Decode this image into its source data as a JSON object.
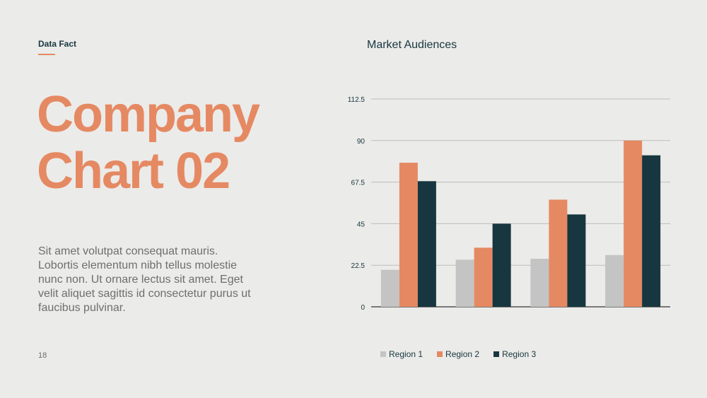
{
  "header": {
    "kicker": "Data Fact"
  },
  "title": {
    "line1": "Company",
    "line2": "Chart 02"
  },
  "body_text": "Sit amet volutpat consequat mauris. Lobortis elementum nibh tellus molestie nunc non. Ut ornare lectus sit amet. Eget velit aliquet sagittis id consectetur purus ut faucibus pulvinar.",
  "page_number": "18",
  "chart_data": {
    "type": "bar",
    "title": "Market Audiences",
    "categories": [
      "",
      "",
      "",
      ""
    ],
    "yticks": [
      "0",
      "22.5",
      "45",
      "67.5",
      "90",
      "112.5"
    ],
    "ylim": [
      0,
      112.5
    ],
    "series": [
      {
        "name": "Region 1",
        "color": "#c4c4c4",
        "values": [
          20,
          25.5,
          26,
          28
        ]
      },
      {
        "name": "Region 2",
        "color": "#e58963",
        "values": [
          78,
          32,
          58,
          90
        ]
      },
      {
        "name": "Region 3",
        "color": "#17363f",
        "values": [
          68,
          45,
          50,
          82
        ]
      }
    ],
    "grid": true,
    "legend": "bottom"
  }
}
